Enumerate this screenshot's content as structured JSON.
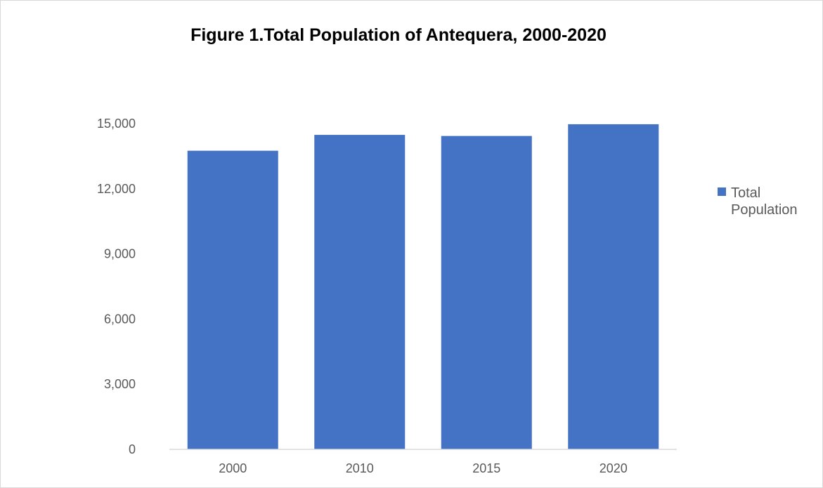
{
  "chart_data": {
    "type": "bar",
    "title": "Figure 1.Total Population of Antequera, 2000-2020",
    "xlabel": "",
    "ylabel": "",
    "categories": [
      "2000",
      "2010",
      "2015",
      "2020"
    ],
    "series": [
      {
        "name": "Total Population",
        "values": [
          13750,
          14480,
          14430,
          14970
        ],
        "color": "#4472c4"
      }
    ],
    "ylim": [
      0,
      15000
    ],
    "yticks": [
      0,
      3000,
      6000,
      9000,
      12000,
      15000
    ],
    "ytick_labels": [
      "0",
      "3,000",
      "6,000",
      "9,000",
      "12,000",
      "15,000"
    ],
    "grid": false,
    "legend": {
      "position": "right",
      "label_lines": [
        "Total",
        "Population"
      ]
    }
  }
}
